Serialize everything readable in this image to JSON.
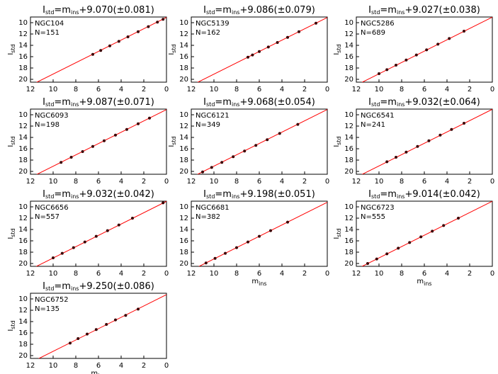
{
  "chart_data": [
    {
      "type": "scatter",
      "title": [
        "I",
        "std",
        "=m",
        "ins",
        "+9.070(±0.081)"
      ],
      "label": "NGC104",
      "n_label": "N=151",
      "ylabel": [
        "I",
        "std"
      ],
      "x": [
        6.5,
        5.8,
        5.0,
        4.2,
        3.4,
        2.5,
        1.6,
        0.8,
        0.3
      ],
      "y": [
        15.6,
        14.9,
        14.1,
        13.3,
        12.5,
        11.6,
        10.7,
        9.9,
        9.4
      ],
      "fit_offset": 9.07,
      "xlim": [
        12,
        0
      ],
      "ylim": [
        20.5,
        9
      ],
      "xticks": [
        12,
        10,
        8,
        6,
        4,
        2,
        0
      ],
      "yticks": [
        10,
        12,
        14,
        16,
        18,
        20
      ],
      "point_color": "#3a0000",
      "line_color": "#ff0000"
    },
    {
      "type": "scatter",
      "title": [
        "I",
        "std",
        "=m",
        "ins",
        "+9.086(±0.079)"
      ],
      "label": "NGC5139",
      "n_label": "N=162",
      "ylabel": [
        "I",
        "std"
      ],
      "x": [
        7.0,
        6.6,
        6.0,
        5.2,
        4.4,
        3.5,
        2.5,
        1.0
      ],
      "y": [
        16.1,
        15.7,
        15.1,
        14.3,
        13.5,
        12.6,
        11.6,
        10.1
      ],
      "fit_offset": 9.086,
      "xlim": [
        12,
        0
      ],
      "ylim": [
        20.5,
        9
      ],
      "xticks": [
        12,
        10,
        8,
        6,
        4,
        2,
        0
      ],
      "yticks": [
        10,
        12,
        14,
        16,
        18,
        20
      ],
      "point_color": "#3a0000",
      "line_color": "#ff0000"
    },
    {
      "type": "scatter",
      "title": [
        "I",
        "std",
        "=m",
        "ins",
        "+9.027(±0.038)"
      ],
      "label": "NGC5286",
      "n_label": "N=689",
      "ylabel": [
        "I",
        "std"
      ],
      "x": [
        10.0,
        9.3,
        8.5,
        7.6,
        6.7,
        5.8,
        4.8,
        3.8,
        2.5
      ],
      "y": [
        19.0,
        18.3,
        17.5,
        16.6,
        15.7,
        14.8,
        13.8,
        12.8,
        11.5
      ],
      "fit_offset": 9.027,
      "xlim": [
        12,
        0
      ],
      "ylim": [
        20.5,
        9
      ],
      "xticks": [
        12,
        10,
        8,
        6,
        4,
        2,
        0
      ],
      "yticks": [
        10,
        12,
        14,
        16,
        18,
        20
      ],
      "point_color": "#3a0000",
      "line_color": "#ff0000"
    },
    {
      "type": "scatter",
      "title": [
        "I",
        "std",
        "=m",
        "ins",
        "+9.087(±0.071)"
      ],
      "label": "NGC6093",
      "n_label": "N=198",
      "ylabel": [
        "I",
        "std"
      ],
      "x": [
        9.3,
        8.4,
        7.4,
        6.5,
        5.5,
        4.5,
        3.5,
        2.5,
        1.5
      ],
      "y": [
        18.4,
        17.5,
        16.5,
        15.6,
        14.6,
        13.6,
        12.6,
        11.6,
        10.6
      ],
      "fit_offset": 9.087,
      "xlim": [
        12,
        0
      ],
      "ylim": [
        20.5,
        9
      ],
      "xticks": [
        12,
        10,
        8,
        6,
        4,
        2,
        0
      ],
      "yticks": [
        10,
        12,
        14,
        16,
        18,
        20
      ],
      "point_color": "#3a0000",
      "line_color": "#ff0000"
    },
    {
      "type": "scatter",
      "title": [
        "I",
        "std",
        "=m",
        "ins",
        "+9.068(±0.054)"
      ],
      "label": "NGC6121",
      "n_label": "N=349",
      "ylabel": [
        "I",
        "std"
      ],
      "x": [
        11.0,
        10.2,
        9.3,
        8.3,
        7.3,
        6.3,
        5.3,
        4.2,
        2.6
      ],
      "y": [
        20.1,
        19.3,
        18.4,
        17.4,
        16.4,
        15.4,
        14.4,
        13.3,
        11.7
      ],
      "fit_offset": 9.068,
      "xlim": [
        12,
        0
      ],
      "ylim": [
        20.5,
        9
      ],
      "xticks": [
        12,
        10,
        8,
        6,
        4,
        2,
        0
      ],
      "yticks": [
        10,
        12,
        14,
        16,
        18,
        20
      ],
      "point_color": "#3a0000",
      "line_color": "#ff0000"
    },
    {
      "type": "scatter",
      "title": [
        "I",
        "std",
        "=m",
        "ins",
        "+9.032(±0.064)"
      ],
      "label": "NGC6541",
      "n_label": "N=241",
      "ylabel": [
        "I",
        "std"
      ],
      "x": [
        9.3,
        8.5,
        7.6,
        6.6,
        5.6,
        4.6,
        3.6,
        2.5
      ],
      "y": [
        18.3,
        17.5,
        16.6,
        15.6,
        14.6,
        13.6,
        12.6,
        11.5
      ],
      "fit_offset": 9.032,
      "xlim": [
        12,
        0
      ],
      "ylim": [
        20.5,
        9
      ],
      "xticks": [
        12,
        10,
        8,
        6,
        4,
        2,
        0
      ],
      "yticks": [
        10,
        12,
        14,
        16,
        18,
        20
      ],
      "point_color": "#3a0000",
      "line_color": "#ff0000"
    },
    {
      "type": "scatter",
      "title": [
        "I",
        "std",
        "=m",
        "ins",
        "+9.032(±0.042)"
      ],
      "label": "NGC6656",
      "n_label": "N=557",
      "ylabel": [
        "I",
        "std"
      ],
      "x": [
        10.0,
        9.2,
        8.2,
        7.2,
        6.2,
        5.2,
        4.2,
        3.0,
        0.3
      ],
      "y": [
        19.0,
        18.2,
        17.2,
        16.2,
        15.2,
        14.2,
        13.2,
        12.0,
        9.3
      ],
      "fit_offset": 9.032,
      "xlim": [
        12,
        0
      ],
      "ylim": [
        20.5,
        9
      ],
      "xticks": [
        12,
        10,
        8,
        6,
        4,
        2,
        0
      ],
      "yticks": [
        10,
        12,
        14,
        16,
        18,
        20
      ],
      "point_color": "#3a0000",
      "line_color": "#ff0000"
    },
    {
      "type": "scatter",
      "title": [
        "I",
        "std",
        "=m",
        "ins",
        "+9.198(±0.051)"
      ],
      "label": "NGC6681",
      "n_label": "N=382",
      "xlabel": [
        "m",
        "ins"
      ],
      "x": [
        10.7,
        9.9,
        9.0,
        8.0,
        7.0,
        6.0,
        5.0,
        3.5
      ],
      "y": [
        19.9,
        19.1,
        18.2,
        17.2,
        16.2,
        15.2,
        14.2,
        12.7
      ],
      "fit_offset": 9.198,
      "xlim": [
        12,
        0
      ],
      "ylim": [
        20.5,
        9
      ],
      "xticks": [
        12,
        10,
        8,
        6,
        4,
        2,
        0
      ],
      "yticks": [
        10,
        12,
        14,
        16,
        18,
        20
      ],
      "point_color": "#3a0000",
      "line_color": "#ff0000"
    },
    {
      "type": "scatter",
      "title": [
        "I",
        "std",
        "=m",
        "ins",
        "+9.014(±0.042)"
      ],
      "label": "NGC6723",
      "n_label": "N=555",
      "ylabel": [
        "I",
        "std"
      ],
      "xlabel": [
        "m",
        "ins"
      ],
      "x": [
        11.0,
        10.2,
        9.3,
        8.3,
        7.3,
        6.3,
        5.3,
        4.3,
        3.0
      ],
      "y": [
        20.0,
        19.2,
        18.3,
        17.3,
        16.3,
        15.3,
        14.3,
        13.3,
        12.0
      ],
      "fit_offset": 9.014,
      "xlim": [
        12,
        0
      ],
      "ylim": [
        20.5,
        9
      ],
      "xticks": [
        12,
        10,
        8,
        6,
        4,
        2,
        0
      ],
      "yticks": [
        10,
        12,
        14,
        16,
        18,
        20
      ],
      "point_color": "#3a0000",
      "line_color": "#ff0000"
    },
    {
      "type": "scatter",
      "title": [
        "I",
        "std",
        "=m",
        "ins",
        "+9.250(±0.086)"
      ],
      "label": "NGC6752",
      "n_label": "N=135",
      "ylabel": [
        "I",
        "std"
      ],
      "xlabel": [
        "m",
        "ins"
      ],
      "x": [
        8.5,
        7.8,
        7.0,
        6.2,
        5.3,
        4.5,
        3.6,
        2.5
      ],
      "y": [
        17.8,
        17.0,
        16.2,
        15.4,
        14.5,
        13.7,
        12.9,
        11.8
      ],
      "fit_offset": 9.25,
      "xlim": [
        12,
        0
      ],
      "ylim": [
        20.5,
        9
      ],
      "xticks": [
        12,
        10,
        8,
        6,
        4,
        2,
        0
      ],
      "yticks": [
        10,
        12,
        14,
        16,
        18,
        20
      ],
      "point_color": "#3a0000",
      "line_color": "#ff0000"
    }
  ]
}
